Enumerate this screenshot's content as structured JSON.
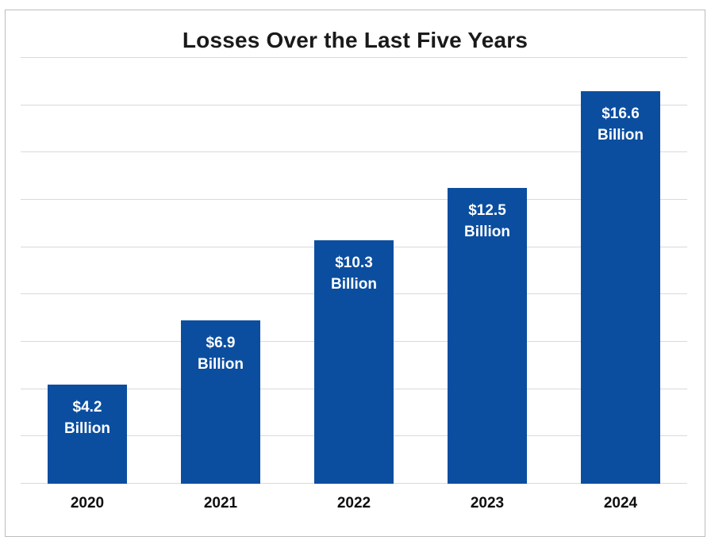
{
  "chart_data": {
    "type": "bar",
    "title": "Losses Over the Last Five Years",
    "categories": [
      "2020",
      "2021",
      "2022",
      "2023",
      "2024"
    ],
    "values": [
      4.2,
      6.9,
      10.3,
      12.5,
      16.6
    ],
    "bar_labels": [
      [
        "$4.2",
        "Billion"
      ],
      [
        "$6.9",
        "Billion"
      ],
      [
        "$10.3",
        "Billion"
      ],
      [
        "$12.5",
        "Billion"
      ],
      [
        "$16.6",
        "Billion"
      ]
    ],
    "xlabel": "",
    "ylabel": "",
    "ylim": [
      0,
      18
    ],
    "gridline_step": 2,
    "grid": "horizontal",
    "legend": false,
    "y_tick_labels_visible": false
  },
  "styles": {
    "bar_color": "#0B4E9F",
    "bar_label_color": "#FFFFFF",
    "grid_color": "#D9D9D9",
    "border_color": "#BDBDBD",
    "title_color": "#1A1A1A",
    "category_label_color": "#0F0F0F",
    "background_color": "#FFFFFF"
  }
}
